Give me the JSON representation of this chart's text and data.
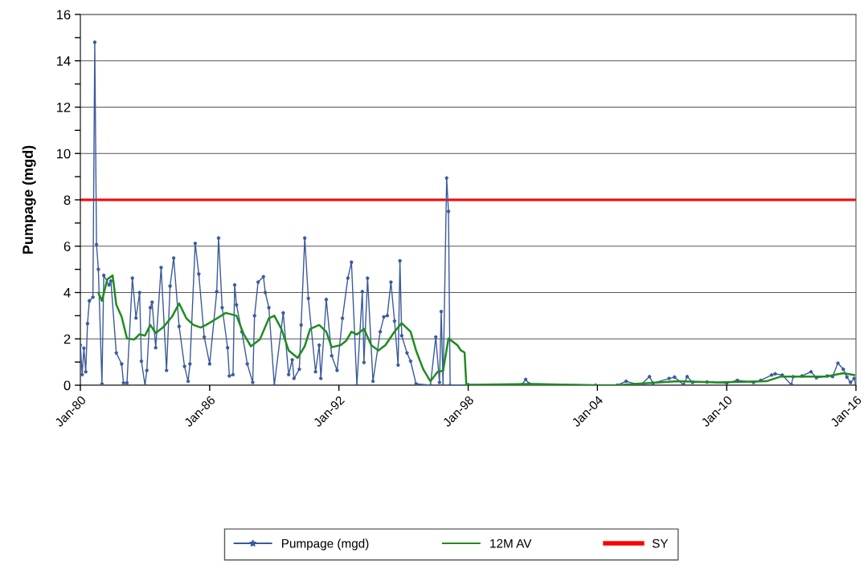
{
  "chart_data": {
    "type": "line",
    "ylabel": "Pumpage (mgd)",
    "xlim": [
      "1980-01",
      "2016-01"
    ],
    "ylim": [
      0,
      16
    ],
    "xticks": [
      {
        "value": "1980-01",
        "label": "Jan-80"
      },
      {
        "value": "1986-01",
        "label": "Jan-86"
      },
      {
        "value": "1992-01",
        "label": "Jan-92"
      },
      {
        "value": "1998-01",
        "label": "Jan-98"
      },
      {
        "value": "2004-01",
        "label": "Jan-04"
      },
      {
        "value": "2010-01",
        "label": "Jan-10"
      },
      {
        "value": "2016-01",
        "label": "Jan-16"
      }
    ],
    "yticks": [
      0,
      {
        "value": 1,
        "label": null
      },
      2,
      {
        "value": 3,
        "label": null
      },
      4,
      {
        "value": 5,
        "label": null
      },
      6,
      {
        "value": 7,
        "label": null
      },
      8,
      {
        "value": 9,
        "label": null
      },
      10,
      {
        "value": 11,
        "label": null
      },
      12,
      {
        "value": 13,
        "label": null
      },
      14,
      {
        "value": 15,
        "label": null
      },
      16
    ],
    "grid": "y",
    "legend": "bottom",
    "series": [
      {
        "name": "Pumpage (mgd)",
        "color": "#3a5a9c",
        "marker": "star",
        "x": [
          "1980-01",
          "1980-02",
          "1980-03",
          "1980-04",
          "1980-05",
          "1980-06",
          "1980-08",
          "1980-09",
          "1980-10",
          "1980-11",
          "1981-01",
          "1981-02",
          "1981-05",
          "1981-06",
          "1981-09",
          "1981-12",
          "1982-01",
          "1982-03",
          "1982-06",
          "1982-08",
          "1982-10",
          "1982-11",
          "1983-01",
          "1983-02",
          "1983-04",
          "1983-05",
          "1983-07",
          "1983-10",
          "1984-01",
          "1984-03",
          "1984-05",
          "1984-08",
          "1984-11",
          "1985-01",
          "1985-02",
          "1985-05",
          "1985-07",
          "1985-10",
          "1986-01",
          "1986-05",
          "1986-06",
          "1986-08",
          "1986-11",
          "1986-12",
          "1987-02",
          "1987-03",
          "1987-04",
          "1987-07",
          "1987-10",
          "1988-01",
          "1988-02",
          "1988-04",
          "1988-07",
          "1988-08",
          "1988-10",
          "1989-01",
          "1989-06",
          "1989-09",
          "1989-11",
          "1989-12",
          "1990-03",
          "1990-04",
          "1990-06",
          "1990-08",
          "1990-12",
          "1991-02",
          "1991-03",
          "1991-06",
          "1991-09",
          "1991-12",
          "1992-03",
          "1992-06",
          "1992-08",
          "1992-11",
          "1993-02",
          "1993-03",
          "1993-05",
          "1993-08",
          "1993-12",
          "1994-02",
          "1994-04",
          "1994-06",
          "1994-08",
          "1994-10",
          "1994-11",
          "1994-12",
          "1995-03",
          "1995-05",
          "1995-08",
          "1996-04",
          "1996-07",
          "1996-09",
          "1996-10",
          "1996-11",
          "1997-01",
          "1997-02",
          "1997-03",
          "1998-01",
          "2000-07",
          "2000-09",
          "2000-11",
          "2003-12",
          "2004-12",
          "2005-05",
          "2006-01",
          "2006-06",
          "2006-08",
          "2007-05",
          "2007-08",
          "2008-01",
          "2008-03",
          "2008-06",
          "2009-02",
          "2010-01",
          "2010-07",
          "2011-04",
          "2011-08",
          "2012-02",
          "2012-04",
          "2012-08",
          "2013-01",
          "2013-02",
          "2013-07",
          "2013-12",
          "2014-03",
          "2014-09",
          "2014-12",
          "2015-03",
          "2015-06",
          "2015-08",
          "2015-10",
          "2015-12",
          "2016-01"
        ],
        "values": [
          1.73,
          0.46,
          1.6,
          0.58,
          2.66,
          3.64,
          3.8,
          14.8,
          6.07,
          5.0,
          0.06,
          4.74,
          4.33,
          4.5,
          1.39,
          0.92,
          0.1,
          0.1,
          4.62,
          2.9,
          4.0,
          1.04,
          0,
          0.64,
          3.35,
          3.58,
          1.62,
          5.08,
          0.64,
          4.28,
          5.49,
          2.54,
          0.81,
          0.17,
          0.92,
          6.12,
          4.8,
          2.08,
          0.92,
          4.04,
          6.35,
          3.35,
          1.62,
          0.4,
          0.46,
          4.33,
          3.47,
          2.31,
          0.92,
          0.12,
          3.0,
          4.45,
          4.68,
          4.0,
          3.35,
          0,
          3.12,
          0.46,
          1.1,
          0.29,
          0.69,
          2.6,
          6.35,
          3.75,
          0.58,
          1.73,
          0.29,
          3.7,
          1.27,
          0.64,
          2.89,
          4.62,
          5.31,
          0,
          4.04,
          0.98,
          4.62,
          0.17,
          2.31,
          2.95,
          3.0,
          4.45,
          2.77,
          0.87,
          5.37,
          2.14,
          1.39,
          1.04,
          0.06,
          0,
          2.08,
          0.12,
          3.18,
          0,
          8.94,
          7.5,
          0,
          0.02,
          0.02,
          0.25,
          0.06,
          0,
          0,
          0.17,
          0,
          0.37,
          0.09,
          0.29,
          0.35,
          0.02,
          0.37,
          0.12,
          0.14,
          0.09,
          0.21,
          0.12,
          0.21,
          0.44,
          0.49,
          0.44,
          0.02,
          0.37,
          0.4,
          0.58,
          0.32,
          0.4,
          0.37,
          0.95,
          0.69,
          0.35,
          0.12,
          0.29,
          0.02
        ]
      },
      {
        "name": "12M AV",
        "color": "#1e8c1e",
        "marker": "none",
        "x": [
          "1980-11",
          "1981-01",
          "1981-04",
          "1981-07",
          "1981-09",
          "1981-12",
          "1982-03",
          "1982-07",
          "1982-10",
          "1983-01",
          "1983-04",
          "1983-07",
          "1983-11",
          "1984-04",
          "1984-08",
          "1984-12",
          "1985-04",
          "1985-08",
          "1985-11",
          "1986-04",
          "1986-10",
          "1987-04",
          "1987-08",
          "1987-12",
          "1988-05",
          "1988-10",
          "1989-01",
          "1989-05",
          "1989-09",
          "1990-02",
          "1990-06",
          "1990-09",
          "1991-02",
          "1991-06",
          "1991-09",
          "1992-02",
          "1992-05",
          "1992-08",
          "1992-11",
          "1993-03",
          "1993-07",
          "1993-11",
          "1994-03",
          "1994-08",
          "1994-12",
          "1995-05",
          "1995-08",
          "1995-12",
          "1996-04",
          "1996-08",
          "1996-11",
          "1997-02",
          "1997-07",
          "1997-09",
          "1997-11",
          "1997-12",
          "1998-01",
          "2000-12",
          "2003-12",
          "2004-12",
          "2005-11",
          "2007-10",
          "2009-08",
          "2011-11",
          "2012-07",
          "2014-08",
          "2015-06",
          "2015-12"
        ],
        "values": [
          3.99,
          3.64,
          4.57,
          4.74,
          3.47,
          2.95,
          2.02,
          1.97,
          2.2,
          2.14,
          2.6,
          2.25,
          2.49,
          2.95,
          3.53,
          2.89,
          2.6,
          2.49,
          2.6,
          2.83,
          3.12,
          3.0,
          2.2,
          1.68,
          1.97,
          2.89,
          3.0,
          2.43,
          1.5,
          1.18,
          1.68,
          2.43,
          2.6,
          2.31,
          1.64,
          1.73,
          1.91,
          2.31,
          2.19,
          2.43,
          1.73,
          1.5,
          1.73,
          2.31,
          2.68,
          2.31,
          1.5,
          0.69,
          0.17,
          0.58,
          0.62,
          2.02,
          1.73,
          1.5,
          1.41,
          0,
          0.02,
          0.05,
          0,
          0,
          0.06,
          0.17,
          0.12,
          0.17,
          0.37,
          0.37,
          0.52,
          0.44
        ]
      }
    ],
    "ref_lines": [
      {
        "axis": "y",
        "value": 8,
        "label": "SY",
        "color": "#ff0000",
        "line_style": "solid"
      }
    ]
  }
}
